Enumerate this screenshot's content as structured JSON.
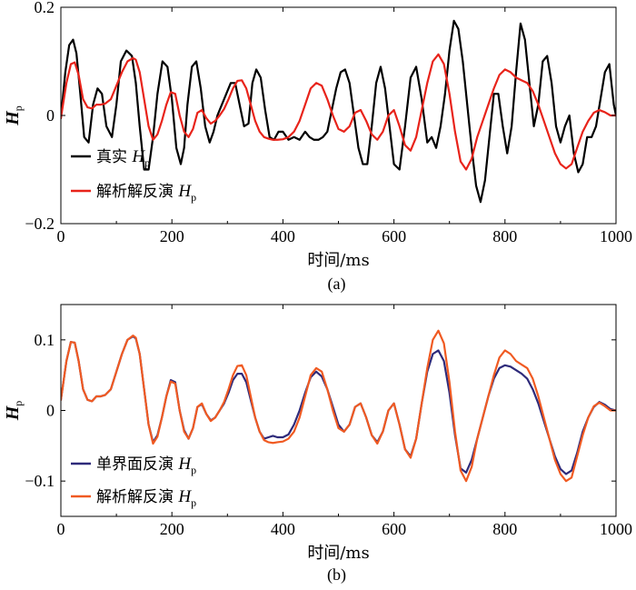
{
  "chart_data": [
    {
      "type": "line",
      "caption": "(a)",
      "xlabel": "时间/ms",
      "ylabel": "H",
      "ylabel_sub": "p",
      "xlim": [
        0,
        1000
      ],
      "ylim": [
        -0.2,
        0.2
      ],
      "xticks": [
        "0",
        "200",
        "400",
        "600",
        "800",
        "1000"
      ],
      "yticks": [
        "-0.2",
        "0",
        "0.2"
      ],
      "legend_position": "bottom-left",
      "series": [
        {
          "name": "真实",
          "name_italic": "H",
          "name_sub": "p",
          "color": "#000000",
          "x": [
            0,
            8,
            15,
            22,
            28,
            35,
            42,
            50,
            58,
            66,
            74,
            82,
            92,
            100,
            108,
            118,
            128,
            135,
            142,
            150,
            158,
            166,
            174,
            183,
            192,
            200,
            208,
            216,
            222,
            228,
            236,
            244,
            252,
            260,
            268,
            275,
            282,
            290,
            298,
            306,
            314,
            322,
            330,
            338,
            345,
            352,
            360,
            368,
            376,
            384,
            392,
            400,
            410,
            420,
            430,
            440,
            448,
            456,
            464,
            472,
            480,
            488,
            496,
            504,
            512,
            520,
            528,
            536,
            544,
            552,
            560,
            568,
            576,
            584,
            592,
            600,
            610,
            620,
            630,
            640,
            650,
            660,
            668,
            676,
            684,
            692,
            700,
            708,
            716,
            724,
            732,
            740,
            748,
            756,
            764,
            772,
            780,
            788,
            796,
            804,
            812,
            820,
            828,
            836,
            844,
            852,
            860,
            868,
            876,
            884,
            892,
            900,
            908,
            916,
            924,
            932,
            940,
            948,
            956,
            964,
            972,
            980,
            988,
            996,
            1000
          ],
          "y": [
            -0.005,
            0.08,
            0.13,
            0.14,
            0.115,
            0.04,
            -0.04,
            -0.05,
            0.02,
            0.05,
            0.04,
            -0.02,
            -0.04,
            0.02,
            0.1,
            0.12,
            0.11,
            0.06,
            -0.02,
            -0.1,
            -0.1,
            -0.04,
            0.04,
            0.1,
            0.09,
            0.03,
            -0.06,
            -0.09,
            -0.06,
            0.02,
            0.09,
            0.1,
            0.05,
            -0.02,
            -0.05,
            -0.03,
            0.0,
            0.02,
            0.04,
            0.06,
            0.06,
            0.02,
            -0.02,
            -0.015,
            0.06,
            0.085,
            0.07,
            0.01,
            -0.04,
            -0.045,
            -0.03,
            -0.03,
            -0.045,
            -0.04,
            -0.045,
            -0.03,
            -0.04,
            -0.045,
            -0.045,
            -0.04,
            -0.03,
            0.01,
            0.05,
            0.08,
            0.085,
            0.06,
            0.0,
            -0.06,
            -0.09,
            -0.09,
            -0.02,
            0.06,
            0.09,
            0.05,
            -0.02,
            -0.09,
            -0.1,
            -0.02,
            0.07,
            0.09,
            0.03,
            -0.05,
            -0.04,
            -0.06,
            -0.02,
            0.04,
            0.12,
            0.175,
            0.16,
            0.1,
            0.02,
            -0.06,
            -0.13,
            -0.16,
            -0.12,
            -0.04,
            0.04,
            0.04,
            -0.02,
            -0.07,
            -0.02,
            0.08,
            0.17,
            0.14,
            0.06,
            -0.02,
            0.02,
            0.1,
            0.11,
            0.06,
            -0.02,
            -0.05,
            -0.02,
            0.0,
            -0.07,
            -0.105,
            -0.09,
            -0.04,
            -0.04,
            -0.02,
            0.03,
            0.08,
            0.095,
            0.02,
            0.0
          ]
        },
        {
          "name": "解析解反演",
          "name_italic": "H",
          "name_sub": "p",
          "color": "#e8231a",
          "x": [
            0,
            10,
            18,
            25,
            32,
            40,
            48,
            56,
            64,
            72,
            80,
            90,
            100,
            110,
            120,
            130,
            135,
            142,
            150,
            158,
            166,
            174,
            182,
            190,
            198,
            206,
            214,
            222,
            230,
            238,
            246,
            254,
            262,
            270,
            278,
            286,
            294,
            302,
            310,
            318,
            326,
            334,
            342,
            350,
            358,
            366,
            374,
            382,
            390,
            400,
            410,
            420,
            430,
            440,
            450,
            460,
            470,
            480,
            490,
            500,
            510,
            520,
            530,
            540,
            550,
            560,
            570,
            580,
            590,
            600,
            610,
            620,
            630,
            640,
            650,
            660,
            670,
            680,
            690,
            700,
            710,
            720,
            730,
            740,
            750,
            760,
            770,
            780,
            790,
            800,
            810,
            820,
            830,
            840,
            850,
            860,
            870,
            880,
            890,
            900,
            910,
            920,
            930,
            940,
            950,
            960,
            970,
            980,
            990,
            1000
          ],
          "y": [
            -0.005,
            0.06,
            0.095,
            0.098,
            0.075,
            0.03,
            0.015,
            0.013,
            0.02,
            0.02,
            0.022,
            0.03,
            0.055,
            0.08,
            0.1,
            0.106,
            0.103,
            0.08,
            0.03,
            -0.02,
            -0.045,
            -0.035,
            -0.01,
            0.02,
            0.043,
            0.04,
            0.0,
            -0.03,
            -0.04,
            -0.025,
            0.005,
            0.01,
            -0.005,
            -0.015,
            -0.01,
            0.0,
            0.012,
            0.03,
            0.05,
            0.064,
            0.065,
            0.05,
            0.02,
            -0.01,
            -0.03,
            -0.04,
            -0.043,
            -0.045,
            -0.045,
            -0.044,
            -0.04,
            -0.03,
            -0.01,
            0.02,
            0.05,
            0.06,
            0.055,
            0.03,
            0.0,
            -0.025,
            -0.03,
            -0.02,
            0.005,
            0.01,
            -0.01,
            -0.035,
            -0.045,
            -0.03,
            0.0,
            0.01,
            -0.02,
            -0.055,
            -0.065,
            -0.04,
            0.01,
            0.06,
            0.1,
            0.113,
            0.095,
            0.04,
            -0.03,
            -0.085,
            -0.1,
            -0.08,
            -0.04,
            -0.01,
            0.02,
            0.05,
            0.075,
            0.085,
            0.08,
            0.07,
            0.065,
            0.06,
            0.045,
            0.02,
            -0.01,
            -0.04,
            -0.07,
            -0.09,
            -0.098,
            -0.09,
            -0.06,
            -0.03,
            -0.01,
            0.005,
            0.01,
            0.006,
            0.0,
            0.0
          ]
        }
      ]
    },
    {
      "type": "line",
      "caption": "(b)",
      "xlabel": "时间/ms",
      "ylabel": "H",
      "ylabel_sub": "p",
      "xlim": [
        0,
        1000
      ],
      "ylim": [
        -0.15,
        0.15
      ],
      "xticks": [
        "0",
        "200",
        "400",
        "600",
        "800",
        "1000"
      ],
      "yticks": [
        "-0.1",
        "0",
        "0.1"
      ],
      "legend_position": "bottom-left",
      "series": [
        {
          "name": "单界面反演",
          "name_italic": "H",
          "name_sub": "p",
          "color": "#2e2a7a",
          "x": [
            0,
            10,
            18,
            25,
            32,
            40,
            48,
            56,
            64,
            72,
            80,
            90,
            100,
            110,
            120,
            130,
            135,
            142,
            150,
            158,
            166,
            174,
            182,
            190,
            198,
            206,
            214,
            222,
            230,
            238,
            246,
            254,
            262,
            270,
            278,
            286,
            294,
            302,
            310,
            318,
            326,
            334,
            342,
            350,
            358,
            366,
            374,
            382,
            390,
            400,
            410,
            420,
            430,
            440,
            450,
            460,
            470,
            480,
            490,
            500,
            510,
            520,
            530,
            540,
            550,
            560,
            570,
            580,
            590,
            600,
            610,
            620,
            630,
            640,
            650,
            660,
            670,
            680,
            690,
            700,
            710,
            720,
            730,
            740,
            750,
            760,
            770,
            780,
            790,
            800,
            810,
            820,
            830,
            840,
            850,
            860,
            870,
            880,
            890,
            900,
            910,
            920,
            930,
            940,
            950,
            960,
            970,
            980,
            990,
            1000
          ],
          "y": [
            0.015,
            0.07,
            0.097,
            0.096,
            0.07,
            0.03,
            0.015,
            0.013,
            0.02,
            0.02,
            0.022,
            0.03,
            0.055,
            0.08,
            0.1,
            0.105,
            0.102,
            0.08,
            0.03,
            -0.02,
            -0.045,
            -0.035,
            -0.01,
            0.02,
            0.043,
            0.04,
            0.0,
            -0.028,
            -0.04,
            -0.025,
            0.005,
            0.009,
            -0.005,
            -0.014,
            -0.01,
            0.0,
            0.01,
            0.025,
            0.043,
            0.052,
            0.052,
            0.04,
            0.015,
            -0.01,
            -0.03,
            -0.04,
            -0.038,
            -0.036,
            -0.038,
            -0.038,
            -0.034,
            -0.02,
            0.0,
            0.025,
            0.047,
            0.055,
            0.048,
            0.03,
            0.005,
            -0.02,
            -0.03,
            -0.02,
            0.005,
            0.01,
            -0.01,
            -0.035,
            -0.045,
            -0.03,
            0.0,
            0.01,
            -0.02,
            -0.055,
            -0.065,
            -0.04,
            0.01,
            0.055,
            0.08,
            0.085,
            0.07,
            0.025,
            -0.035,
            -0.082,
            -0.088,
            -0.07,
            -0.04,
            -0.01,
            0.02,
            0.045,
            0.06,
            0.064,
            0.062,
            0.057,
            0.052,
            0.045,
            0.03,
            0.01,
            -0.015,
            -0.04,
            -0.065,
            -0.083,
            -0.09,
            -0.085,
            -0.06,
            -0.03,
            -0.01,
            0.005,
            0.012,
            0.008,
            0.002,
            0.0
          ]
        },
        {
          "name": "解析解反演",
          "name_italic": "H",
          "name_sub": "p",
          "color": "#f05a22",
          "x": [
            0,
            10,
            18,
            25,
            32,
            40,
            48,
            56,
            64,
            72,
            80,
            90,
            100,
            110,
            120,
            130,
            135,
            142,
            150,
            158,
            166,
            174,
            182,
            190,
            198,
            206,
            214,
            222,
            230,
            238,
            246,
            254,
            262,
            270,
            278,
            286,
            294,
            302,
            310,
            318,
            326,
            334,
            342,
            350,
            358,
            366,
            374,
            382,
            390,
            400,
            410,
            420,
            430,
            440,
            450,
            460,
            470,
            480,
            490,
            500,
            510,
            520,
            530,
            540,
            550,
            560,
            570,
            580,
            590,
            600,
            610,
            620,
            630,
            640,
            650,
            660,
            670,
            680,
            690,
            700,
            710,
            720,
            730,
            740,
            750,
            760,
            770,
            780,
            790,
            800,
            810,
            820,
            830,
            840,
            850,
            860,
            870,
            880,
            890,
            900,
            910,
            920,
            930,
            940,
            950,
            960,
            970,
            980,
            990,
            1000
          ],
          "y": [
            0.015,
            0.07,
            0.097,
            0.096,
            0.07,
            0.03,
            0.015,
            0.013,
            0.02,
            0.02,
            0.022,
            0.03,
            0.055,
            0.08,
            0.1,
            0.106,
            0.103,
            0.08,
            0.03,
            -0.02,
            -0.047,
            -0.037,
            -0.01,
            0.02,
            0.041,
            0.038,
            0.0,
            -0.03,
            -0.04,
            -0.025,
            0.005,
            0.01,
            -0.005,
            -0.015,
            -0.01,
            0.0,
            0.012,
            0.03,
            0.05,
            0.063,
            0.064,
            0.05,
            0.02,
            -0.01,
            -0.03,
            -0.042,
            -0.045,
            -0.046,
            -0.045,
            -0.044,
            -0.04,
            -0.03,
            -0.01,
            0.02,
            0.05,
            0.06,
            0.055,
            0.03,
            0.0,
            -0.025,
            -0.03,
            -0.02,
            0.005,
            0.01,
            -0.01,
            -0.035,
            -0.047,
            -0.03,
            0.0,
            0.01,
            -0.02,
            -0.055,
            -0.067,
            -0.04,
            0.01,
            0.06,
            0.1,
            0.113,
            0.095,
            0.04,
            -0.03,
            -0.085,
            -0.1,
            -0.08,
            -0.04,
            -0.01,
            0.02,
            0.05,
            0.075,
            0.085,
            0.08,
            0.07,
            0.065,
            0.06,
            0.045,
            0.02,
            -0.01,
            -0.04,
            -0.07,
            -0.09,
            -0.1,
            -0.095,
            -0.065,
            -0.035,
            -0.01,
            0.006,
            0.011,
            0.006,
            0.0,
            0.0
          ]
        }
      ]
    }
  ]
}
